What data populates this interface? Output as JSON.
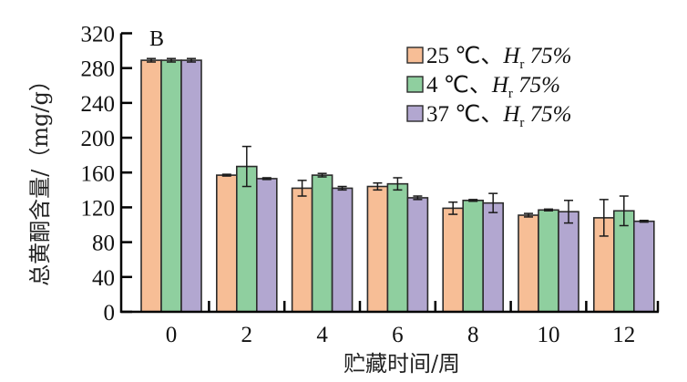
{
  "chart_data": {
    "type": "bar",
    "panel_label": "B",
    "title": "",
    "xlabel": "贮藏时间/周",
    "ylabel": "总黄酮含量/（mg/g）",
    "categories": [
      "0",
      "2",
      "4",
      "6",
      "8",
      "10",
      "12"
    ],
    "ylim": [
      0,
      320
    ],
    "yticks": [
      0,
      40,
      80,
      120,
      160,
      200,
      240,
      280,
      320
    ],
    "grid": false,
    "legend_position": "top-right",
    "series": [
      {
        "name": "25 ℃、Hr 75%",
        "legend": {
          "temp": "25 ℃、",
          "h": "H",
          "sub": "r",
          "rh": " 75%"
        },
        "color": "#F7BE96",
        "values": [
          289,
          157,
          142,
          144,
          119,
          111,
          108
        ],
        "errors": [
          2,
          1,
          9,
          4,
          7,
          2,
          21
        ]
      },
      {
        "name": "4 ℃、Hr 75%",
        "legend": {
          "temp": "4 ℃、",
          "h": "H",
          "sub": "r",
          "rh": " 75%"
        },
        "color": "#8FCF9F",
        "values": [
          289,
          167,
          157,
          147,
          128,
          117,
          116
        ],
        "errors": [
          2,
          23,
          2,
          7,
          1,
          1,
          17
        ]
      },
      {
        "name": "37 ℃、Hr 75%",
        "legend": {
          "temp": "37 ℃、",
          "h": "H",
          "sub": "r",
          "rh": " 75%"
        },
        "color": "#B2A7D0",
        "values": [
          289,
          153,
          142,
          131,
          125,
          115,
          104
        ],
        "errors": [
          2,
          1,
          2,
          2,
          11,
          13,
          1
        ]
      }
    ]
  }
}
